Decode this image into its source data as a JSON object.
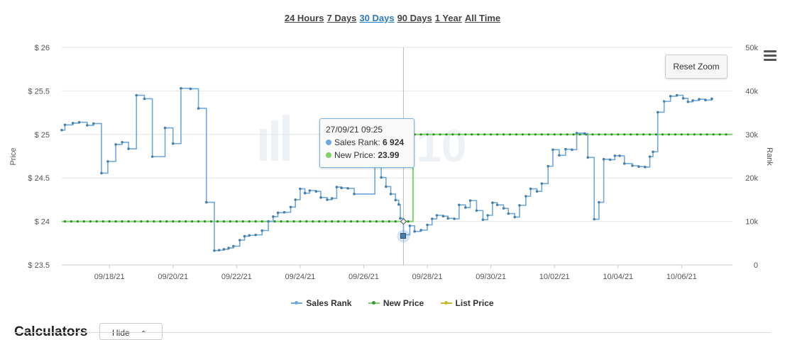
{
  "time_ranges": [
    {
      "label": "24 Hours",
      "active": false
    },
    {
      "label": "7 Days",
      "active": false
    },
    {
      "label": "30 Days",
      "active": true
    },
    {
      "label": "90 Days",
      "active": false
    },
    {
      "label": "1 Year",
      "active": false
    },
    {
      "label": "All Time",
      "active": false
    }
  ],
  "reset_zoom_label": "Reset Zoom",
  "calculators_title": "Calculators",
  "hide_label": "Hide",
  "chart_data": {
    "type": "line",
    "ylabel_left": "Price",
    "ylabel_right": "Rank",
    "y_left_ticks": [
      "$ 23.5",
      "$ 24",
      "$ 24.5",
      "$ 25",
      "$ 25.5",
      "$ 26"
    ],
    "y_left_values": [
      23.5,
      24,
      24.5,
      25,
      25.5,
      26
    ],
    "y_right_ticks": [
      "0",
      "10k",
      "20k",
      "30k",
      "40k",
      "50k"
    ],
    "y_right_values": [
      0,
      10000,
      20000,
      30000,
      40000,
      50000
    ],
    "ylim_left": [
      23.5,
      26
    ],
    "ylim_right": [
      0,
      50000
    ],
    "x_range": [
      16.5,
      37.6
    ],
    "x_ticks": [
      {
        "label": "09/18/21",
        "day": 18
      },
      {
        "label": "09/20/21",
        "day": 20
      },
      {
        "label": "09/22/21",
        "day": 22
      },
      {
        "label": "09/24/21",
        "day": 24
      },
      {
        "label": "09/26/21",
        "day": 26
      },
      {
        "label": "09/28/21",
        "day": 28
      },
      {
        "label": "09/30/21",
        "day": 30
      },
      {
        "label": "10/02/21",
        "day": 32
      },
      {
        "label": "10/04/21",
        "day": 34
      },
      {
        "label": "10/06/21",
        "day": 36
      }
    ],
    "series": [
      {
        "name": "Sales Rank",
        "color": "#6fa8dc",
        "axis": "right",
        "points": [
          [
            16.5,
            31000
          ],
          [
            16.6,
            32200
          ],
          [
            16.85,
            32600
          ],
          [
            17.05,
            32800
          ],
          [
            17.3,
            32100
          ],
          [
            17.5,
            32500
          ],
          [
            17.75,
            21100
          ],
          [
            17.95,
            23800
          ],
          [
            18.2,
            27700
          ],
          [
            18.4,
            28200
          ],
          [
            18.6,
            26700
          ],
          [
            18.85,
            39000
          ],
          [
            19.1,
            38200
          ],
          [
            19.35,
            24900
          ],
          [
            19.75,
            31500
          ],
          [
            20.0,
            27900
          ],
          [
            20.25,
            40600
          ],
          [
            20.55,
            40500
          ],
          [
            20.8,
            36000
          ],
          [
            21.05,
            14400
          ],
          [
            21.3,
            3300
          ],
          [
            21.45,
            3400
          ],
          [
            21.6,
            3600
          ],
          [
            21.75,
            3900
          ],
          [
            21.9,
            4300
          ],
          [
            22.1,
            5700
          ],
          [
            22.25,
            6600
          ],
          [
            22.4,
            6800
          ],
          [
            22.6,
            6900
          ],
          [
            22.8,
            7900
          ],
          [
            23.0,
            10000
          ],
          [
            23.15,
            11100
          ],
          [
            23.3,
            12000
          ],
          [
            23.5,
            12100
          ],
          [
            23.7,
            13300
          ],
          [
            23.85,
            15000
          ],
          [
            24.0,
            17500
          ],
          [
            24.15,
            16500
          ],
          [
            24.3,
            17100
          ],
          [
            24.5,
            16900
          ],
          [
            24.65,
            15500
          ],
          [
            24.85,
            15000
          ],
          [
            25.0,
            15300
          ],
          [
            25.15,
            17900
          ],
          [
            25.3,
            17700
          ],
          [
            25.5,
            17600
          ],
          [
            25.7,
            16300
          ],
          [
            26.35,
            22700
          ],
          [
            26.55,
            20100
          ],
          [
            26.7,
            18000
          ],
          [
            26.85,
            16300
          ],
          [
            27.0,
            14900
          ],
          [
            27.1,
            13900
          ],
          [
            27.15,
            10700
          ],
          [
            27.25,
            6924
          ],
          [
            27.45,
            9000
          ],
          [
            27.6,
            7700
          ],
          [
            27.8,
            8000
          ],
          [
            28.0,
            9200
          ],
          [
            28.15,
            10600
          ],
          [
            28.3,
            11400
          ],
          [
            28.5,
            11200
          ],
          [
            28.65,
            10700
          ],
          [
            28.85,
            10600
          ],
          [
            29.0,
            13800
          ],
          [
            29.2,
            13200
          ],
          [
            29.35,
            14800
          ],
          [
            29.55,
            12500
          ],
          [
            29.75,
            10400
          ],
          [
            29.9,
            11400
          ],
          [
            30.05,
            14300
          ],
          [
            30.2,
            13800
          ],
          [
            30.4,
            13000
          ],
          [
            30.55,
            11800
          ],
          [
            30.75,
            11000
          ],
          [
            30.9,
            13700
          ],
          [
            31.1,
            15800
          ],
          [
            31.25,
            17500
          ],
          [
            31.45,
            16900
          ],
          [
            31.6,
            18700
          ],
          [
            31.8,
            22700
          ],
          [
            31.95,
            26500
          ],
          [
            32.15,
            25200
          ],
          [
            32.35,
            26600
          ],
          [
            32.55,
            26500
          ],
          [
            32.7,
            30300
          ],
          [
            32.95,
            30200
          ],
          [
            33.05,
            24700
          ],
          [
            33.25,
            10500
          ],
          [
            33.4,
            14400
          ],
          [
            33.55,
            24300
          ],
          [
            33.75,
            24200
          ],
          [
            33.9,
            25100
          ],
          [
            34.05,
            25100
          ],
          [
            34.2,
            23300
          ],
          [
            34.45,
            22800
          ],
          [
            34.65,
            22600
          ],
          [
            34.85,
            22500
          ],
          [
            35.0,
            24900
          ],
          [
            35.1,
            26000
          ],
          [
            35.25,
            35100
          ],
          [
            35.45,
            37600
          ],
          [
            35.65,
            38800
          ],
          [
            35.85,
            39000
          ],
          [
            36.05,
            38300
          ],
          [
            36.2,
            37500
          ],
          [
            36.35,
            37800
          ],
          [
            36.55,
            38100
          ],
          [
            36.75,
            37900
          ],
          [
            36.95,
            38200
          ]
        ]
      },
      {
        "name": "New Price",
        "color": "#7fd36a",
        "axis": "left",
        "points": [
          [
            16.5,
            24.0
          ],
          [
            27.25,
            24.0
          ],
          [
            27.55,
            25.0
          ],
          [
            37.6,
            25.0
          ]
        ]
      },
      {
        "name": "List Price",
        "color": "#c9b92a",
        "axis": "left",
        "points": []
      }
    ],
    "tooltip": {
      "date": "27/09/21 09:25",
      "lines": [
        {
          "label": "Sales Rank: ",
          "value": "6 924",
          "color": "#6fa8dc"
        },
        {
          "label": "New Price: ",
          "value": "23.99",
          "color": "#7fd36a"
        }
      ],
      "x_day": 27.25
    },
    "legend_position": "bottom-center",
    "grid": true
  }
}
